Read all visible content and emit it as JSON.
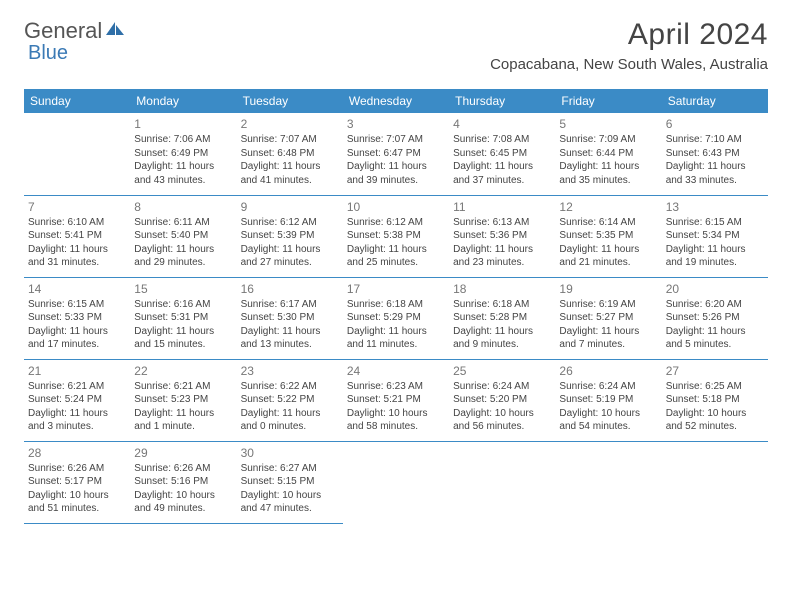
{
  "logo": {
    "part1": "General",
    "part2": "Blue"
  },
  "title": "April 2024",
  "location": "Copacabana, New South Wales, Australia",
  "colors": {
    "header_bg": "#3b8bc6",
    "header_text": "#ffffff",
    "border": "#3b8bc6",
    "daynum": "#777777",
    "body_text": "#444444",
    "logo_gray": "#555555",
    "logo_blue": "#3b7ab5"
  },
  "weekdays": [
    "Sunday",
    "Monday",
    "Tuesday",
    "Wednesday",
    "Thursday",
    "Friday",
    "Saturday"
  ],
  "weeks": [
    [
      null,
      {
        "n": "1",
        "sr": "Sunrise: 7:06 AM",
        "ss": "Sunset: 6:49 PM",
        "dl": "Daylight: 11 hours and 43 minutes."
      },
      {
        "n": "2",
        "sr": "Sunrise: 7:07 AM",
        "ss": "Sunset: 6:48 PM",
        "dl": "Daylight: 11 hours and 41 minutes."
      },
      {
        "n": "3",
        "sr": "Sunrise: 7:07 AM",
        "ss": "Sunset: 6:47 PM",
        "dl": "Daylight: 11 hours and 39 minutes."
      },
      {
        "n": "4",
        "sr": "Sunrise: 7:08 AM",
        "ss": "Sunset: 6:45 PM",
        "dl": "Daylight: 11 hours and 37 minutes."
      },
      {
        "n": "5",
        "sr": "Sunrise: 7:09 AM",
        "ss": "Sunset: 6:44 PM",
        "dl": "Daylight: 11 hours and 35 minutes."
      },
      {
        "n": "6",
        "sr": "Sunrise: 7:10 AM",
        "ss": "Sunset: 6:43 PM",
        "dl": "Daylight: 11 hours and 33 minutes."
      }
    ],
    [
      {
        "n": "7",
        "sr": "Sunrise: 6:10 AM",
        "ss": "Sunset: 5:41 PM",
        "dl": "Daylight: 11 hours and 31 minutes."
      },
      {
        "n": "8",
        "sr": "Sunrise: 6:11 AM",
        "ss": "Sunset: 5:40 PM",
        "dl": "Daylight: 11 hours and 29 minutes."
      },
      {
        "n": "9",
        "sr": "Sunrise: 6:12 AM",
        "ss": "Sunset: 5:39 PM",
        "dl": "Daylight: 11 hours and 27 minutes."
      },
      {
        "n": "10",
        "sr": "Sunrise: 6:12 AM",
        "ss": "Sunset: 5:38 PM",
        "dl": "Daylight: 11 hours and 25 minutes."
      },
      {
        "n": "11",
        "sr": "Sunrise: 6:13 AM",
        "ss": "Sunset: 5:36 PM",
        "dl": "Daylight: 11 hours and 23 minutes."
      },
      {
        "n": "12",
        "sr": "Sunrise: 6:14 AM",
        "ss": "Sunset: 5:35 PM",
        "dl": "Daylight: 11 hours and 21 minutes."
      },
      {
        "n": "13",
        "sr": "Sunrise: 6:15 AM",
        "ss": "Sunset: 5:34 PM",
        "dl": "Daylight: 11 hours and 19 minutes."
      }
    ],
    [
      {
        "n": "14",
        "sr": "Sunrise: 6:15 AM",
        "ss": "Sunset: 5:33 PM",
        "dl": "Daylight: 11 hours and 17 minutes."
      },
      {
        "n": "15",
        "sr": "Sunrise: 6:16 AM",
        "ss": "Sunset: 5:31 PM",
        "dl": "Daylight: 11 hours and 15 minutes."
      },
      {
        "n": "16",
        "sr": "Sunrise: 6:17 AM",
        "ss": "Sunset: 5:30 PM",
        "dl": "Daylight: 11 hours and 13 minutes."
      },
      {
        "n": "17",
        "sr": "Sunrise: 6:18 AM",
        "ss": "Sunset: 5:29 PM",
        "dl": "Daylight: 11 hours and 11 minutes."
      },
      {
        "n": "18",
        "sr": "Sunrise: 6:18 AM",
        "ss": "Sunset: 5:28 PM",
        "dl": "Daylight: 11 hours and 9 minutes."
      },
      {
        "n": "19",
        "sr": "Sunrise: 6:19 AM",
        "ss": "Sunset: 5:27 PM",
        "dl": "Daylight: 11 hours and 7 minutes."
      },
      {
        "n": "20",
        "sr": "Sunrise: 6:20 AM",
        "ss": "Sunset: 5:26 PM",
        "dl": "Daylight: 11 hours and 5 minutes."
      }
    ],
    [
      {
        "n": "21",
        "sr": "Sunrise: 6:21 AM",
        "ss": "Sunset: 5:24 PM",
        "dl": "Daylight: 11 hours and 3 minutes."
      },
      {
        "n": "22",
        "sr": "Sunrise: 6:21 AM",
        "ss": "Sunset: 5:23 PM",
        "dl": "Daylight: 11 hours and 1 minute."
      },
      {
        "n": "23",
        "sr": "Sunrise: 6:22 AM",
        "ss": "Sunset: 5:22 PM",
        "dl": "Daylight: 11 hours and 0 minutes."
      },
      {
        "n": "24",
        "sr": "Sunrise: 6:23 AM",
        "ss": "Sunset: 5:21 PM",
        "dl": "Daylight: 10 hours and 58 minutes."
      },
      {
        "n": "25",
        "sr": "Sunrise: 6:24 AM",
        "ss": "Sunset: 5:20 PM",
        "dl": "Daylight: 10 hours and 56 minutes."
      },
      {
        "n": "26",
        "sr": "Sunrise: 6:24 AM",
        "ss": "Sunset: 5:19 PM",
        "dl": "Daylight: 10 hours and 54 minutes."
      },
      {
        "n": "27",
        "sr": "Sunrise: 6:25 AM",
        "ss": "Sunset: 5:18 PM",
        "dl": "Daylight: 10 hours and 52 minutes."
      }
    ],
    [
      {
        "n": "28",
        "sr": "Sunrise: 6:26 AM",
        "ss": "Sunset: 5:17 PM",
        "dl": "Daylight: 10 hours and 51 minutes."
      },
      {
        "n": "29",
        "sr": "Sunrise: 6:26 AM",
        "ss": "Sunset: 5:16 PM",
        "dl": "Daylight: 10 hours and 49 minutes."
      },
      {
        "n": "30",
        "sr": "Sunrise: 6:27 AM",
        "ss": "Sunset: 5:15 PM",
        "dl": "Daylight: 10 hours and 47 minutes."
      },
      null,
      null,
      null,
      null
    ]
  ]
}
